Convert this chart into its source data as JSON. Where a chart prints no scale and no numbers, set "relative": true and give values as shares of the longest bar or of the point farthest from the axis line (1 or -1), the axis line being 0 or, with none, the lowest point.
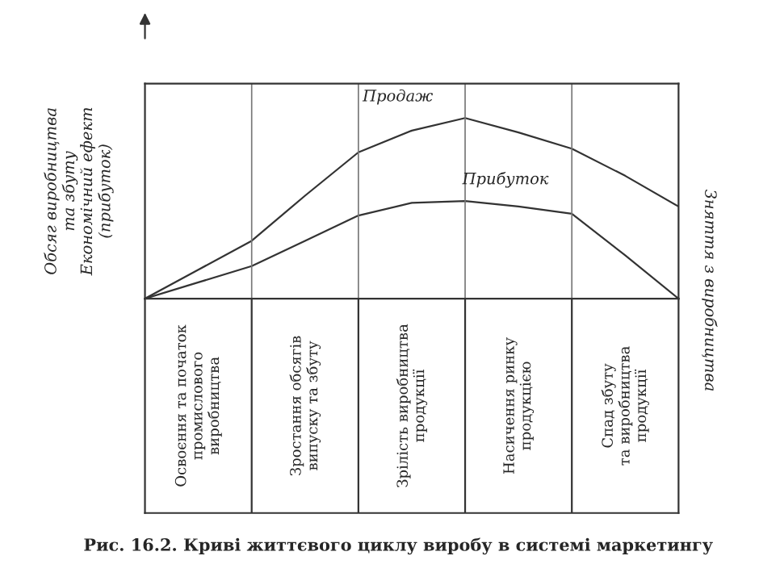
{
  "chart_data": {
    "type": "line",
    "relative": true,
    "ylabel": "Обсяг виробництва\nта збуту\nЕкономічний ефект\n(прибуток)",
    "categories": [
      null,
      null,
      null,
      null,
      null,
      null,
      null,
      null,
      null,
      null,
      null
    ],
    "grid": "x",
    "legend": false,
    "marker": "none",
    "line_style": "solid",
    "series": [
      {
        "name": "Продаж",
        "color": "#333333",
        "values": [
          0,
          0.16,
          0.32,
          0.57,
          0.81,
          0.93,
          1,
          0.92,
          0.83,
          0.68,
          0.51
        ]
      },
      {
        "name": "Прибуток",
        "color": "#333333",
        "values": [
          0,
          0.09,
          0.18,
          0.32,
          0.46,
          0.53,
          0.54,
          0.51,
          0.47,
          0.24,
          0
        ]
      }
    ],
    "annotations": [
      "Освоєння та початок\nпромислового\nвиробництва",
      "Зростання обсягів\nвипуску та збуту",
      "Зрілість виробництва\nпродукції",
      "Насичення ринку\nпродукцією",
      "Спад збуту\nта виробництва\nпродукції",
      "Зняття з виробництва",
      "Рис. 16.2. Криві життєвого циклу виробу в системі маркетингу"
    ]
  }
}
